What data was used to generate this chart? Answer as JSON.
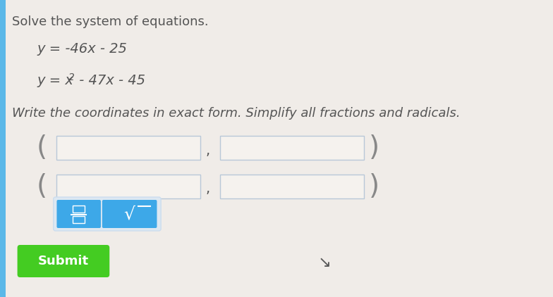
{
  "bg_color": "#f0ece8",
  "left_bar_color": "#5bb8e8",
  "title_text": "Solve the system of equations.",
  "eq1": "y = -46x - 25",
  "instruction": "Write the coordinates in exact form. Simplify all fractions and radicals.",
  "title_font_size": 13,
  "eq_font_size": 14,
  "instr_font_size": 13,
  "input_box_color": "#f5f2ee",
  "input_box_border": "#b8c8d8",
  "paren_color": "#888888",
  "btn_color": "#3da8e8",
  "btn_bg_color": "#e8f0f8",
  "submit_color": "#44cc22",
  "submit_text": "Submit",
  "text_color": "#555555",
  "instr_color": "#555555",
  "cursor_color": "#555555"
}
